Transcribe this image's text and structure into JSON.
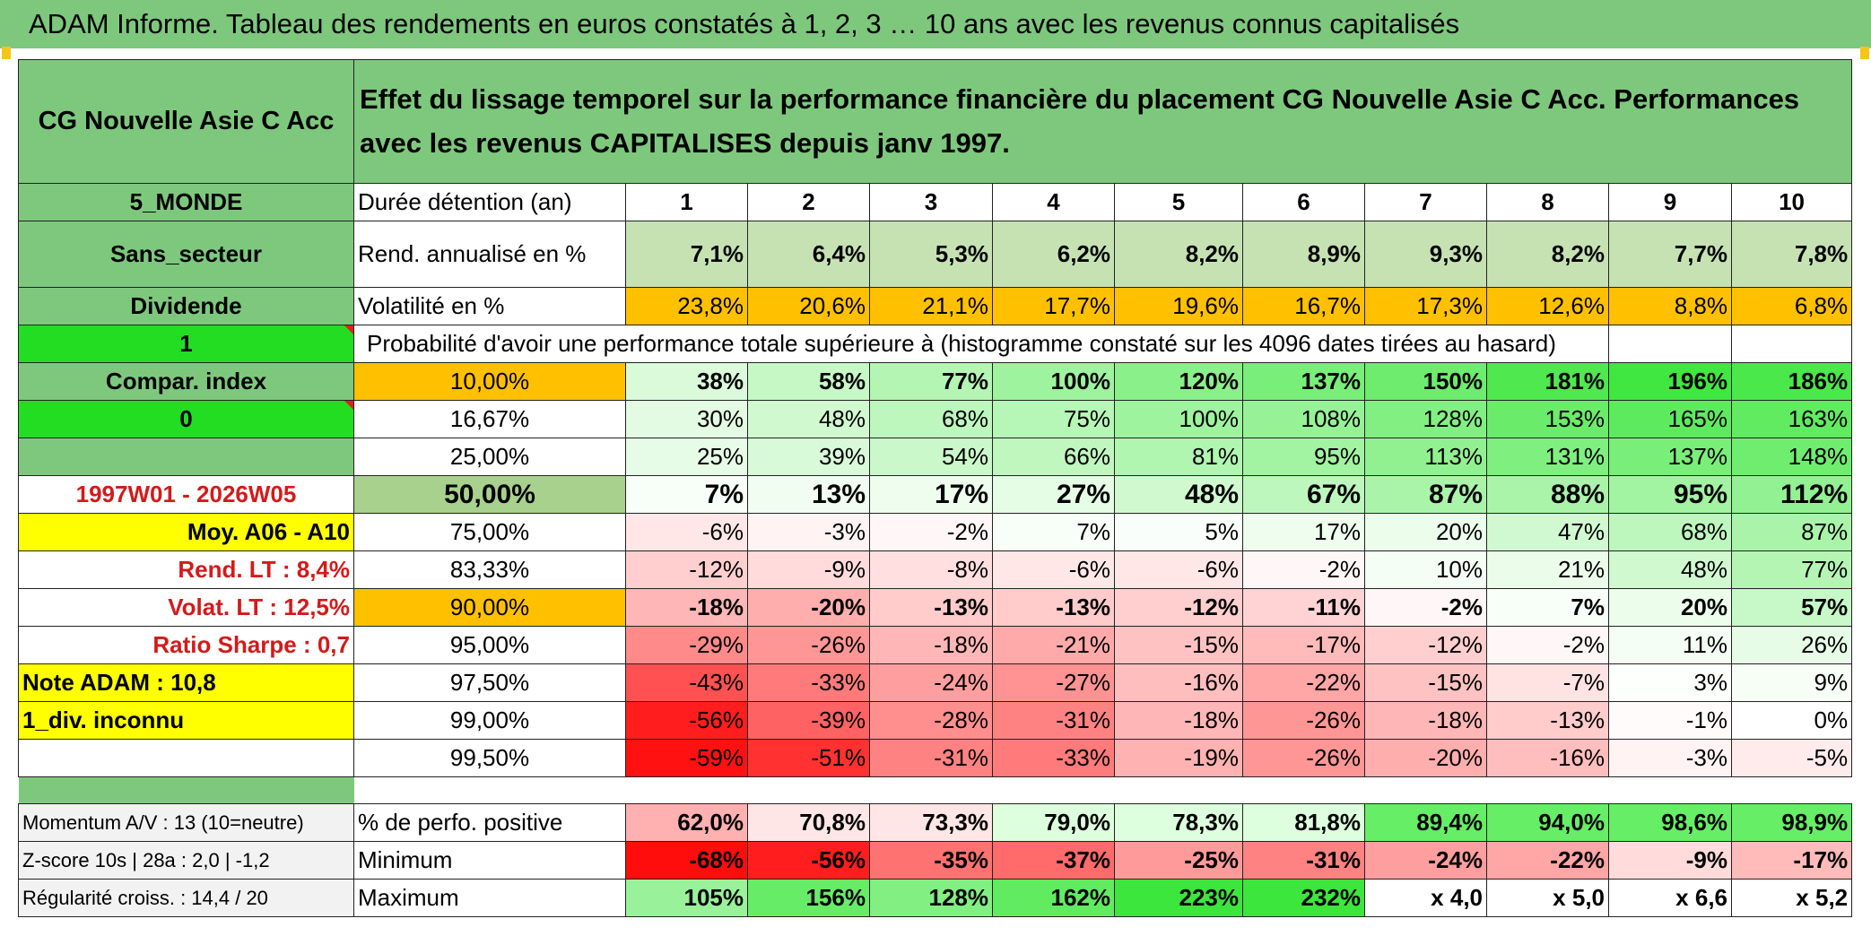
{
  "title": "ADAM Informe. Tableau des rendements en euros constatés à 1, 2, 3 … 10 ans avec les revenus connus capitalisés",
  "fund": {
    "name": "CG Nouvelle Asie C Acc",
    "description": "Effet du lissage temporel sur la performance financière du placement CG Nouvelle Asie C Acc. Performances avec les revenus CAPITALISES depuis janv 1997.",
    "zone": "5_MONDE",
    "sector": "Sans_secteur",
    "dividend": "Dividende",
    "flag1": "1",
    "compar": "Compar. index",
    "flag0": "0",
    "period": "1997W01 - 2026W05",
    "moy": "Moy. A06 - A10",
    "rend_lt": "Rend. LT :   8,4%",
    "volat_lt": "Volat. LT :   12,5%",
    "sharpe": "Ratio Sharpe :   0,7",
    "note": "Note ADAM : 10,8",
    "div_inconnu": "1_div. inconnu"
  },
  "table": {
    "duree_label": "Durée détention (an)",
    "years": [
      "1",
      "2",
      "3",
      "4",
      "5",
      "6",
      "7",
      "8",
      "9",
      "10"
    ],
    "rend_label": "Rend. annualisé en %",
    "rend": [
      "7,1%",
      "6,4%",
      "5,3%",
      "6,2%",
      "8,2%",
      "8,9%",
      "9,3%",
      "8,2%",
      "7,7%",
      "7,8%"
    ],
    "vol_label": "Volatilité en %",
    "vol": [
      "23,8%",
      "20,6%",
      "21,1%",
      "17,7%",
      "19,6%",
      "16,7%",
      "17,3%",
      "12,6%",
      "8,8%",
      "6,8%"
    ],
    "prob_label": "Probabilité d'avoir une performance totale supérieure à (histogramme constaté sur les 4096 dates tirées au hasard)",
    "prob_rows": [
      {
        "pct": "10,00%",
        "values": [
          "38%",
          "58%",
          "77%",
          "100%",
          "120%",
          "137%",
          "150%",
          "181%",
          "196%",
          "186%"
        ]
      },
      {
        "pct": "16,67%",
        "values": [
          "30%",
          "48%",
          "68%",
          "75%",
          "100%",
          "108%",
          "128%",
          "153%",
          "165%",
          "163%"
        ]
      },
      {
        "pct": "25,00%",
        "values": [
          "25%",
          "39%",
          "54%",
          "66%",
          "81%",
          "95%",
          "113%",
          "131%",
          "137%",
          "148%"
        ]
      },
      {
        "pct": "50,00%",
        "values": [
          "7%",
          "13%",
          "17%",
          "27%",
          "48%",
          "67%",
          "87%",
          "88%",
          "95%",
          "112%"
        ]
      },
      {
        "pct": "75,00%",
        "values": [
          "-6%",
          "-3%",
          "-2%",
          "7%",
          "5%",
          "17%",
          "20%",
          "47%",
          "68%",
          "87%"
        ]
      },
      {
        "pct": "83,33%",
        "values": [
          "-12%",
          "-9%",
          "-8%",
          "-6%",
          "-6%",
          "-2%",
          "10%",
          "21%",
          "48%",
          "77%"
        ]
      },
      {
        "pct": "90,00%",
        "values": [
          "-18%",
          "-20%",
          "-13%",
          "-13%",
          "-12%",
          "-11%",
          "-2%",
          "7%",
          "20%",
          "57%"
        ]
      },
      {
        "pct": "95,00%",
        "values": [
          "-29%",
          "-26%",
          "-18%",
          "-21%",
          "-15%",
          "-17%",
          "-12%",
          "-2%",
          "11%",
          "26%"
        ]
      },
      {
        "pct": "97,50%",
        "values": [
          "-43%",
          "-33%",
          "-24%",
          "-27%",
          "-16%",
          "-22%",
          "-15%",
          "-7%",
          "3%",
          "9%"
        ]
      },
      {
        "pct": "99,00%",
        "values": [
          "-56%",
          "-39%",
          "-28%",
          "-31%",
          "-18%",
          "-26%",
          "-18%",
          "-13%",
          "-1%",
          "0%"
        ]
      },
      {
        "pct": "99,50%",
        "values": [
          "-59%",
          "-51%",
          "-31%",
          "-33%",
          "-19%",
          "-26%",
          "-20%",
          "-16%",
          "-3%",
          "-5%"
        ]
      }
    ],
    "bottom": [
      {
        "left": "Momentum A/V : 13 (10=neutre)",
        "label": "% de perfo. positive",
        "values": [
          "62,0%",
          "70,8%",
          "73,3%",
          "79,0%",
          "78,3%",
          "81,8%",
          "89,4%",
          "94,0%",
          "98,6%",
          "98,9%"
        ]
      },
      {
        "left": "Z-score 10s | 28a : 2,0 | -1,2",
        "label": "Minimum",
        "values": [
          "-68%",
          "-56%",
          "-35%",
          "-37%",
          "-25%",
          "-31%",
          "-24%",
          "-22%",
          "-9%",
          "-17%"
        ]
      },
      {
        "left": "Régularité croiss. : 14,4 / 20",
        "label": "Maximum",
        "values": [
          "105%",
          "156%",
          "128%",
          "162%",
          "223%",
          "232%",
          "x 4,0",
          "x 5,0",
          "x 6,6",
          "x 5,2"
        ]
      }
    ]
  },
  "colors": {
    "title_green": "#7ec87e",
    "left_green": "#7ec87e",
    "bright_green": "#22dd22",
    "yellow": "#ffff00",
    "orange": "#ffc000",
    "rend_green": "#c6e2b3",
    "median_green": "#a9d18e",
    "red_text": "#d41a1a"
  }
}
